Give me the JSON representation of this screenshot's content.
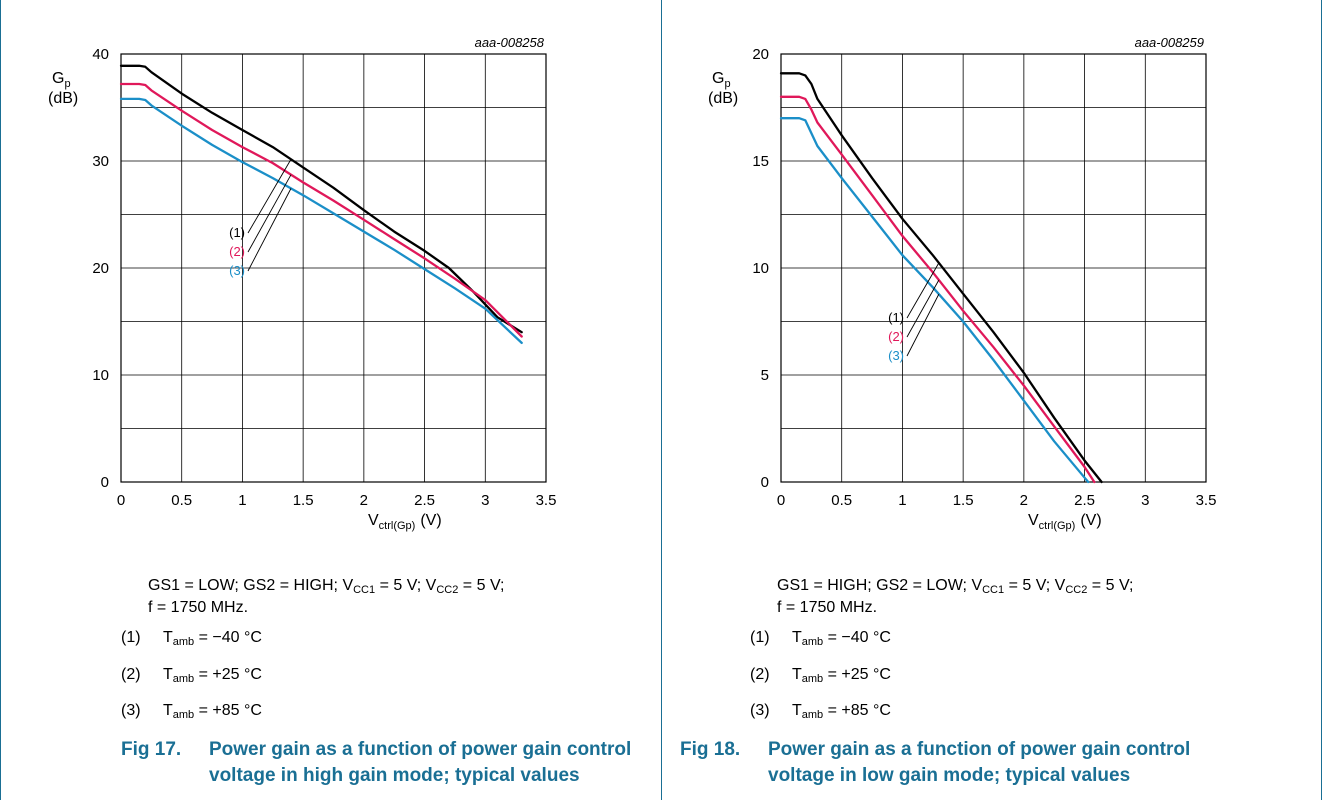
{
  "figures": [
    {
      "fig_label": "Fig 17.",
      "fig_title_line1": "Power gain as a function of power gain control",
      "fig_title_line2": "voltage in high gain mode; typical values",
      "conditions_line2": "f = 1750 MHz.",
      "legend": [
        {
          "num": "(1)",
          "temp": "= −40 °C",
          "callout": "(1)",
          "color": "#000000"
        },
        {
          "num": "(2)",
          "temp": "= +25 °C",
          "callout": "(2)",
          "color": "#e0185a"
        },
        {
          "num": "(3)",
          "temp": "= +85 °C",
          "callout": "(3)",
          "color": "#1b8fc8"
        }
      ]
    },
    {
      "fig_label": "Fig 18.",
      "fig_title_line1": "Power gain as a function of power gain control",
      "fig_title_line2": "voltage in low gain mode; typical values",
      "conditions_line2": "f = 1750 MHz.",
      "legend": [
        {
          "num": "(1)",
          "temp": "= −40 °C",
          "callout": "(1)",
          "color": "#000000"
        },
        {
          "num": "(2)",
          "temp": "= +25 °C",
          "callout": "(2)",
          "color": "#e0185a"
        },
        {
          "num": "(3)",
          "temp": "= +85 °C",
          "callout": "(3)",
          "color": "#1b8fc8"
        }
      ]
    }
  ],
  "chart_data": [
    {
      "type": "line",
      "id_label": "aaa-008258",
      "ylabel": "G",
      "ylabel_sub": "p",
      "yunit": "(dB)",
      "xlabel": "V",
      "xlabel_sub": "ctrl(Gp)",
      "xunit": "(V)",
      "xlim": [
        0,
        3.5
      ],
      "ylim": [
        0,
        40
      ],
      "xticks": [
        "0",
        "0.5",
        "1",
        "1.5",
        "2",
        "2.5",
        "3",
        "3.5"
      ],
      "yticks": [
        "0",
        "10",
        "20",
        "30",
        "40"
      ],
      "grid": true,
      "series": [
        {
          "name": "(1)",
          "color": "#000000",
          "x": [
            0,
            0.15,
            0.2,
            0.25,
            0.5,
            0.75,
            1.0,
            1.25,
            1.5,
            1.75,
            2.0,
            2.25,
            2.5,
            2.7,
            2.9,
            3.0,
            3.1,
            3.3
          ],
          "y": [
            38.9,
            38.9,
            38.8,
            38.3,
            36.3,
            34.5,
            32.9,
            31.3,
            29.4,
            27.5,
            25.4,
            23.4,
            21.6,
            20.0,
            17.8,
            16.6,
            15.4,
            14.0
          ]
        },
        {
          "name": "(2)",
          "color": "#e0185a",
          "x": [
            0,
            0.15,
            0.2,
            0.25,
            0.5,
            0.75,
            1.0,
            1.25,
            1.5,
            1.75,
            2.0,
            2.25,
            2.5,
            2.75,
            3.0,
            3.3
          ],
          "y": [
            37.2,
            37.2,
            37.1,
            36.6,
            34.7,
            32.9,
            31.3,
            29.8,
            28.0,
            26.3,
            24.5,
            22.7,
            20.9,
            19.0,
            17.0,
            13.6
          ]
        },
        {
          "name": "(3)",
          "color": "#1b8fc8",
          "x": [
            0,
            0.15,
            0.2,
            0.25,
            0.5,
            0.75,
            1.0,
            1.25,
            1.5,
            1.75,
            2.0,
            2.25,
            2.5,
            2.75,
            3.0,
            3.3
          ],
          "y": [
            35.8,
            35.8,
            35.7,
            35.2,
            33.3,
            31.5,
            29.9,
            28.4,
            26.8,
            25.1,
            23.4,
            21.7,
            19.9,
            18.1,
            16.2,
            13.0
          ]
        }
      ]
    },
    {
      "type": "line",
      "id_label": "aaa-008259",
      "ylabel": "G",
      "ylabel_sub": "p",
      "yunit": "(dB)",
      "xlabel": "V",
      "xlabel_sub": "ctrl(Gp)",
      "xunit": "(V)",
      "xlim": [
        0,
        3.5
      ],
      "ylim": [
        0,
        20
      ],
      "xticks": [
        "0",
        "0.5",
        "1",
        "1.5",
        "2",
        "2.5",
        "3",
        "3.5"
      ],
      "yticks": [
        "0",
        "5",
        "10",
        "15",
        "20"
      ],
      "grid": true,
      "series": [
        {
          "name": "(1)",
          "color": "#000000",
          "x": [
            0,
            0.15,
            0.2,
            0.25,
            0.3,
            0.5,
            0.75,
            1.0,
            1.25,
            1.5,
            1.75,
            2.0,
            2.25,
            2.5,
            2.64
          ],
          "y": [
            19.1,
            19.1,
            19.0,
            18.6,
            17.9,
            16.2,
            14.2,
            12.3,
            10.6,
            8.8,
            7.0,
            5.1,
            3.0,
            1.0,
            0.0
          ]
        },
        {
          "name": "(2)",
          "color": "#e0185a",
          "x": [
            0,
            0.15,
            0.2,
            0.25,
            0.3,
            0.5,
            0.75,
            1.0,
            1.25,
            1.5,
            1.75,
            2.0,
            2.25,
            2.5,
            2.58
          ],
          "y": [
            18.0,
            18.0,
            17.9,
            17.4,
            16.8,
            15.3,
            13.4,
            11.5,
            9.8,
            8.0,
            6.3,
            4.5,
            2.6,
            0.7,
            0.0
          ]
        },
        {
          "name": "(3)",
          "color": "#1b8fc8",
          "x": [
            0,
            0.15,
            0.2,
            0.25,
            0.3,
            0.5,
            0.75,
            1.0,
            1.25,
            1.5,
            1.75,
            2.0,
            2.25,
            2.5,
            2.53
          ],
          "y": [
            17.0,
            17.0,
            16.9,
            16.3,
            15.7,
            14.2,
            12.4,
            10.6,
            9.1,
            7.5,
            5.7,
            3.8,
            1.9,
            0.2,
            0.0
          ]
        }
      ]
    }
  ]
}
